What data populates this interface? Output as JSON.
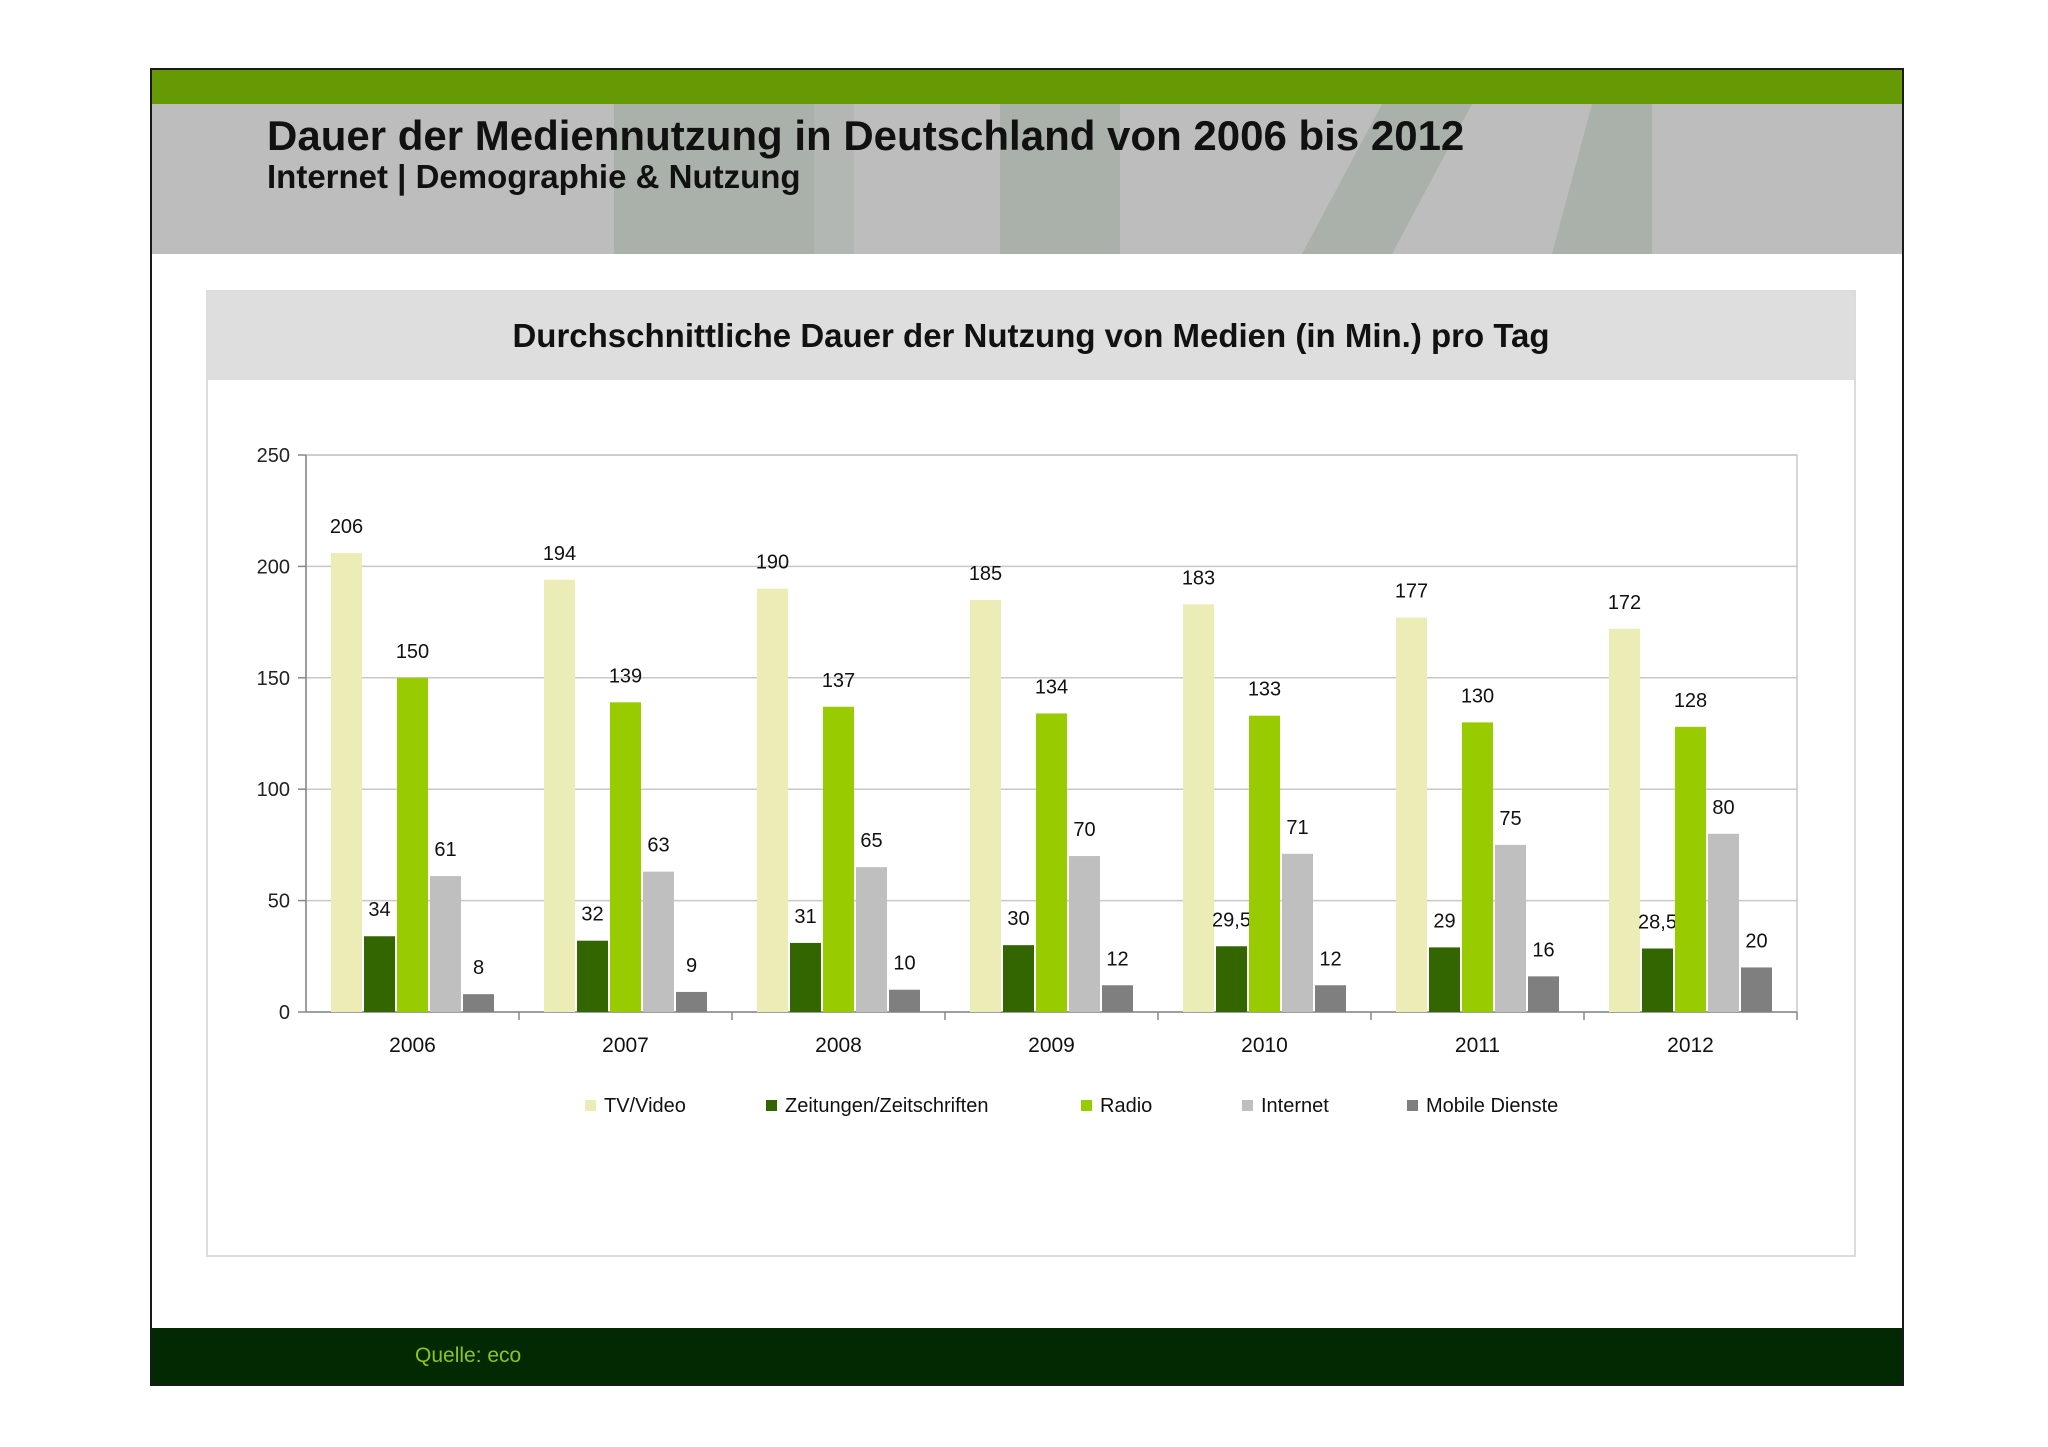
{
  "header": {
    "title": "Dauer der Mediennutzung in Deutschland von 2006 bis 2012",
    "subtitle": "Internet | Demographie & Nutzung"
  },
  "footer": {
    "source": "Quelle: eco"
  },
  "colors": {
    "top_bar": "#669a05",
    "header_bg": "#bdbdbd",
    "footer_bg": "#032903",
    "source_text": "#8fc31f"
  },
  "chart_data": {
    "type": "bar",
    "title": "Durchschnittliche Dauer der Nutzung von Medien (in Min.) pro Tag",
    "xlabel": "",
    "ylabel": "",
    "categories": [
      "2006",
      "2007",
      "2008",
      "2009",
      "2010",
      "2011",
      "2012"
    ],
    "ylim": [
      0,
      250
    ],
    "yticks": [
      0,
      50,
      100,
      150,
      200,
      250
    ],
    "grid": true,
    "legend_position": "bottom",
    "series": [
      {
        "name": "TV/Video",
        "color": "#ececb6",
        "values": [
          206,
          194,
          190,
          185,
          183,
          177,
          172
        ],
        "labels": [
          "206",
          "194",
          "190",
          "185",
          "183",
          "177",
          "172"
        ]
      },
      {
        "name": "Zeitungen/Zeitschriften",
        "color": "#336600",
        "values": [
          34,
          32,
          31,
          30,
          29.5,
          29,
          28.5
        ],
        "labels": [
          "34",
          "32",
          "31",
          "30",
          "29,5",
          "29",
          "28,5"
        ]
      },
      {
        "name": "Radio",
        "color": "#99cc00",
        "values": [
          150,
          139,
          137,
          134,
          133,
          130,
          128
        ],
        "labels": [
          "150",
          "139",
          "137",
          "134",
          "133",
          "130",
          "128"
        ]
      },
      {
        "name": "Internet",
        "color": "#bfbfbf",
        "values": [
          61,
          63,
          65,
          70,
          71,
          75,
          80
        ],
        "labels": [
          "61",
          "63",
          "65",
          "70",
          "71",
          "75",
          "80"
        ]
      },
      {
        "name": "Mobile Dienste",
        "color": "#7f7f7f",
        "values": [
          8,
          9,
          10,
          12,
          12,
          16,
          20
        ],
        "labels": [
          "8",
          "9",
          "10",
          "12",
          "12",
          "16",
          "20"
        ]
      }
    ]
  }
}
